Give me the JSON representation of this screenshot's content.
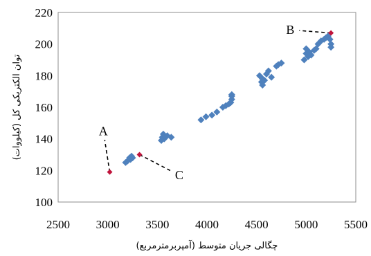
{
  "chart_data": {
    "type": "scatter",
    "title": "",
    "xlabel": "چگالی جریان متوسط (آمپربرمترمربع)",
    "ylabel": "توان الکتریکی کل (کیلووات)",
    "xlim": [
      2500,
      5500
    ],
    "ylim": [
      100,
      220
    ],
    "xticks": [
      "2500",
      "3000",
      "3500",
      "4000",
      "4500",
      "5000",
      "5500"
    ],
    "yticks": [
      "100",
      "120",
      "140",
      "160",
      "180",
      "200",
      "220"
    ],
    "grid": false,
    "legend": "none",
    "series": [
      {
        "color": "#4f81bd",
        "marker": "diamond",
        "points": [
          [
            3180,
            125
          ],
          [
            3200,
            126
          ],
          [
            3220,
            128
          ],
          [
            3230,
            127
          ],
          [
            3240,
            129
          ],
          [
            3250,
            128
          ],
          [
            3540,
            139
          ],
          [
            3550,
            141
          ],
          [
            3560,
            143
          ],
          [
            3570,
            140
          ],
          [
            3600,
            142
          ],
          [
            3640,
            141
          ],
          [
            3940,
            152
          ],
          [
            3990,
            154
          ],
          [
            4050,
            155
          ],
          [
            4100,
            157
          ],
          [
            4160,
            160
          ],
          [
            4190,
            161
          ],
          [
            4220,
            162
          ],
          [
            4240,
            163
          ],
          [
            4250,
            165
          ],
          [
            4250,
            167
          ],
          [
            4250,
            168
          ],
          [
            4530,
            180
          ],
          [
            4550,
            176
          ],
          [
            4560,
            178
          ],
          [
            4560,
            174
          ],
          [
            4580,
            177
          ],
          [
            4600,
            181
          ],
          [
            4620,
            183
          ],
          [
            4650,
            179
          ],
          [
            4700,
            186
          ],
          [
            4720,
            187
          ],
          [
            4750,
            188
          ],
          [
            4980,
            190
          ],
          [
            5000,
            194
          ],
          [
            5000,
            197
          ],
          [
            5020,
            192
          ],
          [
            5030,
            195
          ],
          [
            5050,
            193
          ],
          [
            5080,
            196
          ],
          [
            5100,
            197
          ],
          [
            5120,
            200
          ],
          [
            5150,
            202
          ],
          [
            5180,
            203
          ],
          [
            5200,
            204
          ],
          [
            5220,
            205
          ],
          [
            5240,
            203
          ],
          [
            5250,
            200
          ],
          [
            5250,
            198
          ]
        ]
      },
      {
        "color": "#c0143c",
        "marker": "diamond",
        "points": [
          [
            3020,
            119
          ],
          [
            3320,
            130
          ],
          [
            5250,
            207
          ]
        ]
      }
    ],
    "annotations": [
      {
        "label": "A",
        "point": [
          3020,
          119
        ],
        "text_at": [
          2955,
          145
        ]
      },
      {
        "label": "B",
        "point": [
          5250,
          207
        ],
        "text_at": [
          4840,
          209
        ]
      },
      {
        "label": "C",
        "point": [
          3320,
          130
        ],
        "text_at": [
          3720,
          117
        ]
      }
    ],
    "colors": {
      "axis": "#000000",
      "leader": "#000000"
    }
  }
}
